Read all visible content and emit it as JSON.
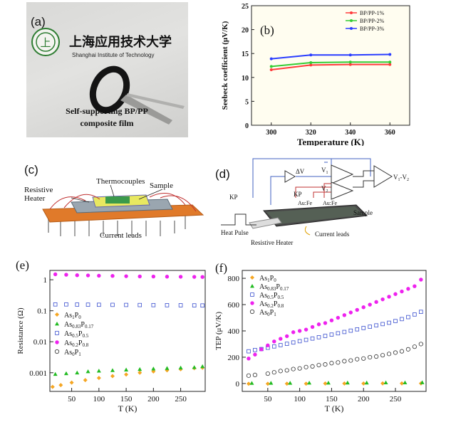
{
  "panels": {
    "a": {
      "label": "(a)",
      "logo_seal_text": "上",
      "logo_cn": "上海应用技术大学",
      "logo_en": "Shanghai Institute of Technology",
      "caption_line1": "Self-supporting BP/PP",
      "caption_line2": "composite film"
    },
    "b": {
      "label": "(b)"
    },
    "c": {
      "label": "(c)",
      "thermocouples": "Thermocouples",
      "sample": "Sample",
      "resistive": "Resistive",
      "heater": "Heater",
      "current_leads": "Current leads"
    },
    "d": {
      "label": "(d)",
      "dv": "ΔV",
      "v1": "V",
      "v1_sub": "1",
      "v2": "V",
      "v2_sub": "2",
      "vdiff": "V",
      "vdiff_sub1": "1",
      "vdiff_mid": "-V",
      "vdiff_sub2": "2",
      "kp_left": "KP",
      "kp_mid": "KP",
      "aufe1": "Au:Fe",
      "aufe2": "Au:Fe",
      "sample": "Sample",
      "heat_pulse": "Heat Pulse",
      "current_leads": "Current leads",
      "resistive_heater": "Resistive Heater"
    },
    "e": {
      "label": "(e)"
    },
    "f": {
      "label": "(f)"
    }
  },
  "chart_data": [
    {
      "panel": "b",
      "type": "line",
      "xlabel": "Temperature (K)",
      "ylabel": "Seebeck coefficient (μV/K)",
      "xlim": [
        290,
        370
      ],
      "ylim": [
        0,
        25
      ],
      "xticks": [
        300,
        320,
        340,
        360
      ],
      "yticks": [
        0,
        5,
        10,
        15,
        20,
        25
      ],
      "legend_position": "top-right",
      "colors": [
        "#ff3b3b",
        "#33cc33",
        "#2a3dff"
      ],
      "x": [
        300,
        320,
        340,
        360
      ],
      "series": [
        {
          "name": "BP/PP-1%",
          "values": [
            11.6,
            12.6,
            12.7,
            12.7
          ]
        },
        {
          "name": "BP/PP-2%",
          "values": [
            12.3,
            13.1,
            13.2,
            13.2
          ]
        },
        {
          "name": "BP/PP-3%",
          "values": [
            13.9,
            14.7,
            14.7,
            14.8
          ]
        }
      ]
    },
    {
      "panel": "e",
      "type": "scatter",
      "xlabel": "T (K)",
      "ylabel": "Resistance (Ω)",
      "xlim": [
        10,
        295
      ],
      "ylog": true,
      "ylim": [
        0.00025,
        2
      ],
      "xticks": [
        50,
        100,
        150,
        200,
        250
      ],
      "yticks": [
        "0.001",
        "0.01",
        "0.1",
        "1"
      ],
      "yticks_values": [
        0.001,
        0.01,
        0.1,
        1
      ],
      "legend_position": "left",
      "series": [
        {
          "name": "As₁P₀",
          "legend_main": "As",
          "legend_sub": "1",
          "legend_main2": "P",
          "legend_sub2": "0",
          "marker": "diamond-filled",
          "color": "#f5a623",
          "x": [
            15,
            30,
            50,
            75,
            100,
            125,
            150,
            175,
            200,
            225,
            250,
            275,
            290
          ],
          "values": [
            0.00035,
            0.0004,
            0.00048,
            0.00058,
            0.00068,
            0.00078,
            0.00088,
            0.001,
            0.0011,
            0.0012,
            0.0013,
            0.0014,
            0.00145
          ]
        },
        {
          "name": "As₀.₈₃P₀.₁₇",
          "legend_main": "As",
          "legend_sub": "0.83",
          "legend_main2": "P",
          "legend_sub2": "0.17",
          "marker": "triangle-filled",
          "color": "#22bb22",
          "x": [
            20,
            40,
            60,
            80,
            100,
            125,
            150,
            175,
            200,
            225,
            250,
            275,
            290
          ],
          "values": [
            0.0009,
            0.00095,
            0.001,
            0.0011,
            0.00115,
            0.0012,
            0.00125,
            0.0013,
            0.00135,
            0.0014,
            0.00145,
            0.0015,
            0.0016
          ]
        },
        {
          "name": "As₀.₅P₀.₅",
          "legend_main": "As",
          "legend_sub": "0.5",
          "legend_main2": "P",
          "legend_sub2": "0.5",
          "marker": "square-open",
          "color": "#3a4fcf",
          "x": [
            20,
            40,
            60,
            80,
            100,
            125,
            150,
            175,
            200,
            225,
            250,
            275,
            290
          ],
          "values": [
            0.16,
            0.16,
            0.158,
            0.157,
            0.156,
            0.155,
            0.154,
            0.153,
            0.152,
            0.151,
            0.15,
            0.149,
            0.148
          ]
        },
        {
          "name": "As₀.₂P₀.₈",
          "legend_main": "As",
          "legend_sub": "0.2",
          "legend_main2": "P",
          "legend_sub2": "0.8",
          "marker": "circle-filled",
          "color": "#ee22ee",
          "x": [
            20,
            40,
            60,
            80,
            100,
            125,
            150,
            175,
            200,
            225,
            250,
            275,
            290
          ],
          "values": [
            1.5,
            1.45,
            1.4,
            1.38,
            1.35,
            1.33,
            1.3,
            1.28,
            1.27,
            1.26,
            1.25,
            1.24,
            1.23
          ]
        },
        {
          "name": "As₀P₁",
          "legend_main": "As",
          "legend_sub": "0",
          "legend_main2": "P",
          "legend_sub2": "1",
          "marker": "circle-open",
          "color": "#333333",
          "x": [],
          "values": []
        }
      ]
    },
    {
      "panel": "f",
      "type": "scatter",
      "xlabel": "T (K)",
      "ylabel": "TEP (μV/K)",
      "xlim": [
        10,
        298
      ],
      "ylim": [
        -60,
        860
      ],
      "xticks": [
        50,
        100,
        150,
        200,
        250
      ],
      "yticks": [
        0,
        200,
        400,
        600,
        800
      ],
      "legend_position": "top-left",
      "series": [
        {
          "name": "As₁P₀",
          "legend_main": "As",
          "legend_sub": "1",
          "legend_main2": "P",
          "legend_sub2": "0",
          "marker": "diamond-filled",
          "color": "#f5a623",
          "x": [
            20,
            50,
            80,
            110,
            140,
            170,
            200,
            230,
            260,
            290
          ],
          "values": [
            -2,
            -2,
            -1,
            -1,
            0,
            0,
            0,
            1,
            1,
            1
          ]
        },
        {
          "name": "As₀.₈₃P₀.₁₇",
          "legend_main": "As",
          "legend_sub": "0.83",
          "legend_main2": "P",
          "legend_sub2": "0.17",
          "marker": "triangle-filled",
          "color": "#22bb22",
          "x": [
            25,
            55,
            85,
            115,
            145,
            175,
            205,
            235,
            265,
            292
          ],
          "values": [
            3,
            4,
            4,
            5,
            5,
            6,
            6,
            7,
            7,
            8
          ]
        },
        {
          "name": "As₀.₅P₀.₅",
          "legend_main": "As",
          "legend_sub": "0.5",
          "legend_main2": "P",
          "legend_sub2": "0.5",
          "marker": "square-open",
          "color": "#3a4fcf",
          "x": [
            20,
            30,
            40,
            50,
            60,
            70,
            80,
            90,
            100,
            110,
            120,
            130,
            140,
            150,
            160,
            170,
            180,
            190,
            200,
            210,
            220,
            230,
            240,
            250,
            260,
            270,
            280,
            290
          ],
          "values": [
            245,
            255,
            262,
            272,
            282,
            292,
            302,
            312,
            322,
            332,
            342,
            352,
            362,
            372,
            382,
            392,
            402,
            412,
            422,
            432,
            442,
            452,
            462,
            475,
            490,
            505,
            525,
            545
          ]
        },
        {
          "name": "As₀.₂P₀.₈",
          "legend_main": "As",
          "legend_sub": "0.2",
          "legend_main2": "P",
          "legend_sub2": "0.8",
          "marker": "circle-filled",
          "color": "#ee22ee",
          "x": [
            20,
            30,
            40,
            50,
            60,
            70,
            80,
            90,
            100,
            110,
            120,
            130,
            140,
            150,
            160,
            170,
            180,
            190,
            200,
            210,
            220,
            230,
            240,
            250,
            260,
            270,
            280,
            290
          ],
          "values": [
            190,
            220,
            260,
            290,
            320,
            340,
            360,
            390,
            400,
            410,
            430,
            450,
            460,
            480,
            500,
            520,
            540,
            560,
            580,
            600,
            620,
            640,
            660,
            680,
            700,
            720,
            740,
            790
          ]
        },
        {
          "name": "As₀P₁",
          "legend_main": "As",
          "legend_sub": "0",
          "legend_main2": "P",
          "legend_sub2": "1",
          "marker": "circle-open",
          "color": "#333333",
          "x": [
            20,
            30,
            50,
            60,
            70,
            80,
            90,
            100,
            110,
            120,
            130,
            140,
            150,
            160,
            170,
            180,
            190,
            200,
            210,
            220,
            230,
            240,
            250,
            260,
            270,
            280,
            290
          ],
          "values": [
            60,
            65,
            75,
            85,
            95,
            100,
            110,
            115,
            125,
            130,
            140,
            145,
            155,
            160,
            170,
            175,
            185,
            190,
            200,
            205,
            215,
            225,
            235,
            245,
            260,
            280,
            300
          ]
        }
      ]
    }
  ]
}
